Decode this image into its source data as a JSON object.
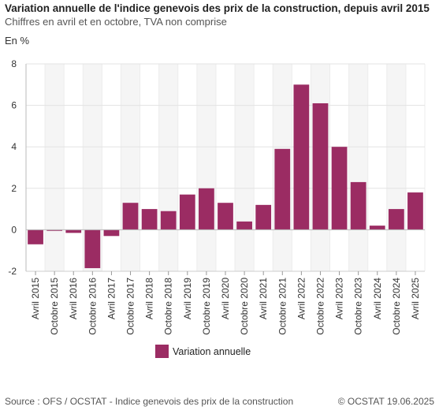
{
  "header": {
    "title": "Variation annuelle de l'indice genevois des prix de la construction, depuis avril 2015",
    "subtitle": "Chiffres en avril et en octobre, TVA non comprise",
    "unit_label": "En %"
  },
  "footer": {
    "source": "Source : OFS / OCSTAT - Indice genevois des prix de la construction",
    "copyright": "© OCSTAT 19.06.2025"
  },
  "colors": {
    "bar": "#9b2c63",
    "alt_band": "#f5f5f5",
    "grid": "#e3e3e3"
  },
  "chart_data": {
    "type": "bar",
    "title": "Variation annuelle de l'indice genevois des prix de la construction, depuis avril 2015",
    "subtitle": "Chiffres en avril et en octobre, TVA non comprise",
    "xlabel": "",
    "ylabel": "En %",
    "ylim": [
      -2,
      8
    ],
    "yticks": [
      -2,
      0,
      2,
      4,
      6,
      8
    ],
    "grid": true,
    "legend": "bottom",
    "categories": [
      "Avril 2015",
      "Octobre 2015",
      "Avril 2016",
      "Octobre 2016",
      "Avril 2017",
      "Octobre 2017",
      "Avril 2018",
      "Octobre 2018",
      "Avril 2019",
      "Octobre 2019",
      "Avril 2020",
      "Octobre 2020",
      "Avril 2021",
      "Octobre 2021",
      "Avril 2022",
      "Octobre 2022",
      "Avril 2023",
      "Octobre 2023",
      "Avril 2024",
      "Octobre 2024",
      "Avril 2025"
    ],
    "series": [
      {
        "name": "Variation annuelle",
        "color": "#9b2c63",
        "values": [
          -0.7,
          -0.05,
          -0.15,
          -1.85,
          -0.3,
          1.3,
          1.0,
          0.9,
          1.7,
          2.0,
          1.3,
          0.4,
          1.2,
          3.9,
          7.0,
          6.1,
          4.0,
          2.3,
          0.2,
          1.0,
          1.8
        ]
      }
    ]
  }
}
